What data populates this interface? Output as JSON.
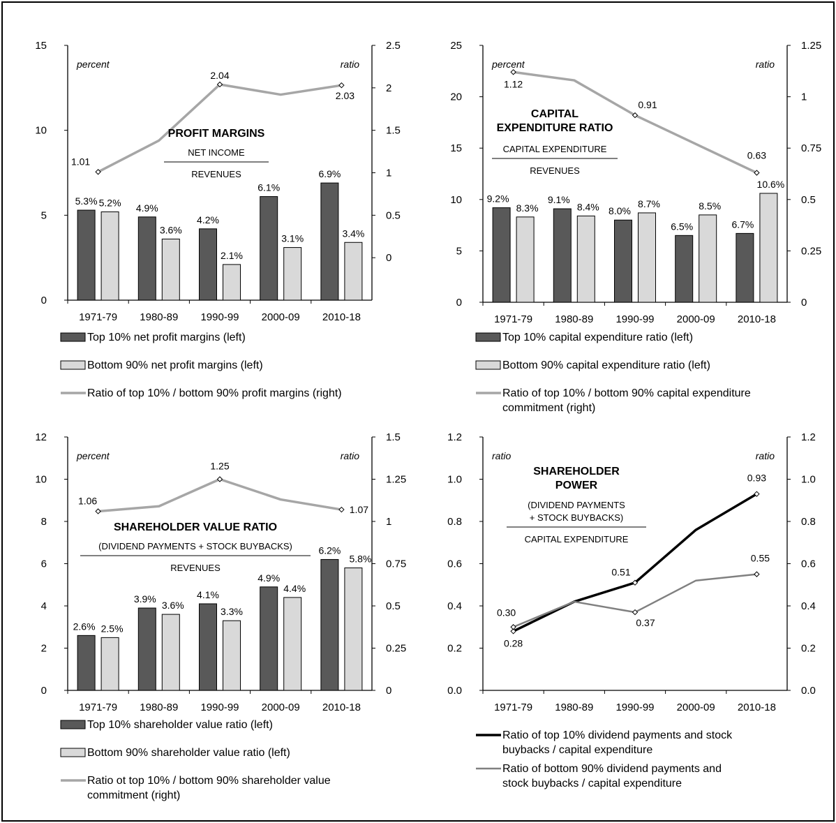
{
  "chart_data": [
    {
      "type": "bar",
      "title_lines": [
        "PROFIT MARGINS"
      ],
      "numerator": "NET  INCOME",
      "denominator": "REVENUES",
      "left_unit": "percent",
      "right_unit": "ratio",
      "categories": [
        "1971-79",
        "1980-89",
        "1990-99",
        "2000-09",
        "2010-18"
      ],
      "ylim": [
        0,
        15
      ],
      "yticks": [
        "0",
        "5",
        "10",
        "15"
      ],
      "y2lim": [
        -0.5,
        2.5
      ],
      "y2ticks": [
        "0",
        "0.5",
        "1",
        "1.5",
        "2",
        "2.5"
      ],
      "series": [
        {
          "name": "Top 10% net profit margins (left)",
          "kind": "bar",
          "color": "#595959",
          "values": [
            5.3,
            4.9,
            4.2,
            6.1,
            6.9
          ],
          "labels": [
            "5.3%",
            "4.9%",
            "4.2%",
            "6.1%",
            "6.9%"
          ]
        },
        {
          "name": "Bottom 90% net profit margins (left)",
          "kind": "bar",
          "color": "#d9d9d9",
          "values": [
            5.2,
            3.6,
            2.1,
            3.1,
            3.4
          ],
          "labels": [
            "5.2%",
            "3.6%",
            "2.1%",
            "3.1%",
            "3.4%"
          ]
        },
        {
          "name": "Ratio of top 10% / bottom 90% profit margins (right)",
          "kind": "line",
          "axis": "right",
          "color": "#a6a6a6",
          "values": [
            1.01,
            1.38,
            2.04,
            1.92,
            2.03
          ],
          "labels": [
            "1.01",
            "",
            "2.04",
            "",
            "2.03"
          ]
        }
      ]
    },
    {
      "type": "bar",
      "title_lines": [
        "CAPITAL",
        "EXPENDITURE  RATIO"
      ],
      "numerator": "CAPITAL  EXPENDITURE",
      "denominator": "REVENUES",
      "left_unit": "percent",
      "right_unit": "ratio",
      "categories": [
        "1971-79",
        "1980-89",
        "1990-99",
        "2000-09",
        "2010-18"
      ],
      "ylim": [
        0,
        25
      ],
      "yticks": [
        "0",
        "5",
        "10",
        "15",
        "20",
        "25"
      ],
      "y2lim": [
        0,
        1.25
      ],
      "y2ticks": [
        "0",
        "0.25",
        "0.5",
        "0.75",
        "1",
        "1.25"
      ],
      "series": [
        {
          "name": "Top 10% capital expenditure ratio (left)",
          "kind": "bar",
          "color": "#595959",
          "values": [
            9.2,
            9.1,
            8.0,
            6.5,
            6.7
          ],
          "labels": [
            "9.2%",
            "9.1%",
            "8.0%",
            "6.5%",
            "6.7%"
          ]
        },
        {
          "name": "Bottom 90% capital expenditure ratio (left)",
          "kind": "bar",
          "color": "#d9d9d9",
          "values": [
            8.3,
            8.4,
            8.7,
            8.5,
            10.6
          ],
          "labels": [
            "8.3%",
            "8.4%",
            "8.7%",
            "8.5%",
            "10.6%"
          ]
        },
        {
          "name": "Ratio of top 10% / bottom 90% capital expenditure commitment (right)",
          "name_lines": [
            "Ratio of top 10% / bottom 90% capital expenditure",
            "commitment (right)"
          ],
          "kind": "line",
          "axis": "right",
          "color": "#a6a6a6",
          "values": [
            1.12,
            1.08,
            0.91,
            0.77,
            0.63
          ],
          "labels": [
            "1.12",
            "",
            "0.91",
            "",
            "0.63"
          ]
        }
      ]
    },
    {
      "type": "bar",
      "title_lines": [
        "SHAREHOLDER  VALUE RATIO"
      ],
      "numerator": "(DIVIDEND  PAYMENTS  + STOCK  BUYBACKS)",
      "denominator": "REVENUES",
      "left_unit": "percent",
      "right_unit": "ratio",
      "categories": [
        "1971-79",
        "1980-89",
        "1990-99",
        "2000-09",
        "2010-18"
      ],
      "ylim": [
        0,
        12
      ],
      "yticks": [
        "0",
        "2",
        "4",
        "6",
        "8",
        "10",
        "12"
      ],
      "y2lim": [
        0,
        1.5
      ],
      "y2ticks": [
        "0",
        "0.25",
        "0.5",
        "0.75",
        "1",
        "1.25",
        "1.5"
      ],
      "series": [
        {
          "name": "Top 10% shareholder value ratio (left)",
          "kind": "bar",
          "color": "#595959",
          "values": [
            2.6,
            3.9,
            4.1,
            4.9,
            6.2
          ],
          "labels": [
            "2.6%",
            "3.9%",
            "4.1%",
            "4.9%",
            "6.2%"
          ]
        },
        {
          "name": "Bottom 90% shareholder value ratio (left)",
          "kind": "bar",
          "color": "#d9d9d9",
          "values": [
            2.5,
            3.6,
            3.3,
            4.4,
            5.8
          ],
          "labels": [
            "2.5%",
            "3.6%",
            "3.3%",
            "4.4%",
            "5.8%"
          ]
        },
        {
          "name": "Ratio ot top 10% / bottom 90% shareholder value commitment (right)",
          "name_lines": [
            "Ratio ot top 10% / bottom 90% shareholder value",
            "commitment (right)"
          ],
          "kind": "line",
          "axis": "right",
          "color": "#a6a6a6",
          "values": [
            1.06,
            1.09,
            1.25,
            1.13,
            1.07
          ],
          "labels": [
            "1.06",
            "",
            "1.25",
            "",
            "1.07"
          ]
        }
      ]
    },
    {
      "type": "line",
      "title_lines": [
        "SHAREHOLDER",
        "POWER"
      ],
      "numerator_lines": [
        "(DIVIDEND  PAYMENTS",
        "+ STOCK  BUYBACKS)"
      ],
      "denominator": "CAPITAL  EXPENDITURE",
      "left_unit": "ratio",
      "right_unit": "ratio",
      "categories": [
        "1971-79",
        "1980-89",
        "1990-99",
        "2000-09",
        "2010-18"
      ],
      "ylim": [
        0,
        1.2
      ],
      "yticks": [
        "0.0",
        "0.2",
        "0.4",
        "0.6",
        "0.8",
        "1.0",
        "1.2"
      ],
      "y2lim": [
        0,
        1.2
      ],
      "y2ticks": [
        "0.0",
        "0.2",
        "0.4",
        "0.6",
        "0.8",
        "1.0",
        "1.2"
      ],
      "series": [
        {
          "name": "Ratio of top 10% dividend payments and stock buybacks / capital expenditure",
          "name_lines": [
            "Ratio of top 10% dividend payments and stock",
            "buybacks / capital expenditure"
          ],
          "kind": "line",
          "axis": "left",
          "color": "#000000",
          "width": 3.5,
          "values": [
            0.28,
            0.42,
            0.51,
            0.76,
            0.93
          ],
          "labels": [
            "0.28",
            "",
            "0.51",
            "",
            "0.93"
          ]
        },
        {
          "name": "Ratio of bottom 90% dividend payments and stock buybacks / capital expenditure",
          "name_lines": [
            "Ratio of bottom 90% dividend payments and",
            "stock buybacks / capital expenditure"
          ],
          "kind": "line",
          "axis": "left",
          "color": "#808080",
          "width": 2.5,
          "values": [
            0.3,
            0.42,
            0.37,
            0.52,
            0.55
          ],
          "labels": [
            "0.30",
            "",
            "0.37",
            "",
            "0.55"
          ]
        }
      ]
    }
  ]
}
